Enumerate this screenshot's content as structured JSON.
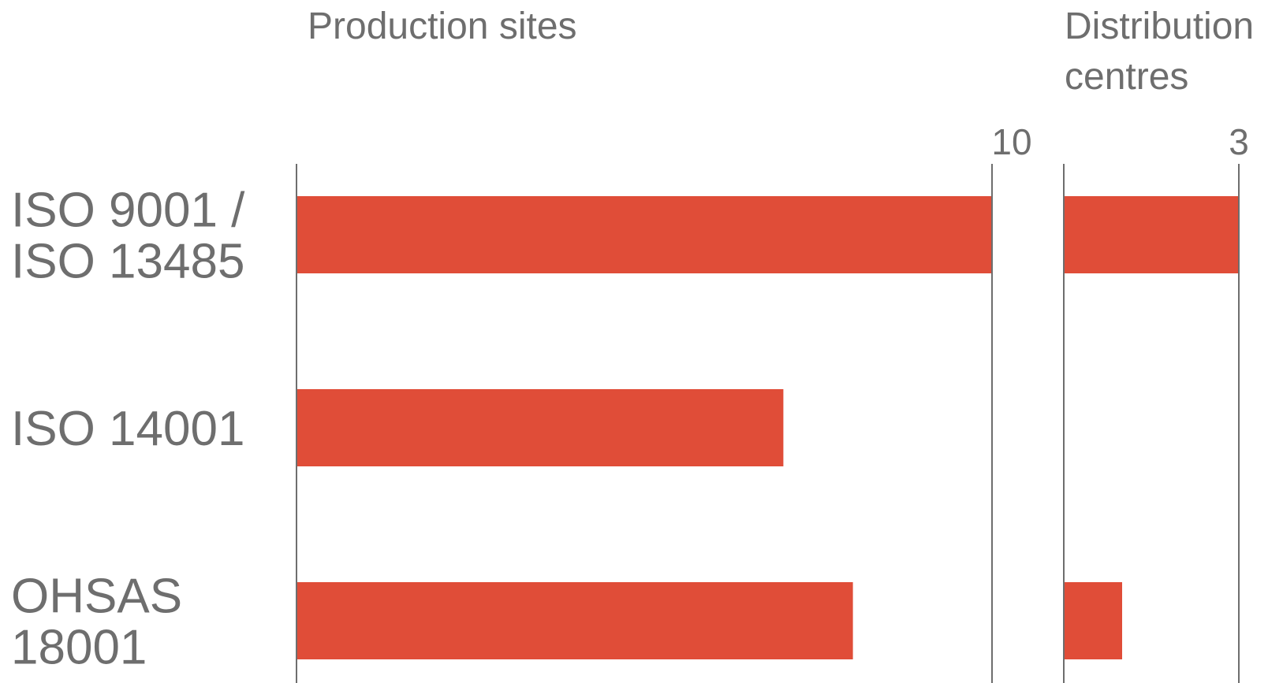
{
  "chart_data": [
    {
      "type": "bar",
      "orientation": "horizontal",
      "title": "Production sites",
      "categories": [
        "ISO 9001 / ISO 13485",
        "ISO 14001",
        "OHSAS 18001"
      ],
      "values": [
        10,
        7,
        8
      ],
      "xlim": [
        0,
        10
      ],
      "ticks": [
        "10"
      ],
      "grid": false,
      "colors": {
        "bar": "#e04d38",
        "axis": "#6e6e6e",
        "text": "#6e6e6e"
      }
    },
    {
      "type": "bar",
      "orientation": "horizontal",
      "title": "Distribution centres",
      "categories": [
        "ISO 9001 / ISO 13485",
        "ISO 14001",
        "OHSAS 18001"
      ],
      "values": [
        3,
        0,
        1
      ],
      "xlim": [
        0,
        3
      ],
      "ticks": [
        "3"
      ],
      "grid": false,
      "colors": {
        "bar": "#e04d38",
        "axis": "#6e6e6e",
        "text": "#6e6e6e"
      }
    }
  ],
  "category_lines": [
    [
      "ISO 9001 /",
      "ISO 13485"
    ],
    [
      "ISO 14001"
    ],
    [
      "OHSAS",
      "18001"
    ]
  ],
  "panel_title_lines": [
    [
      "Production sites"
    ],
    [
      "Distribution",
      "centres"
    ]
  ]
}
